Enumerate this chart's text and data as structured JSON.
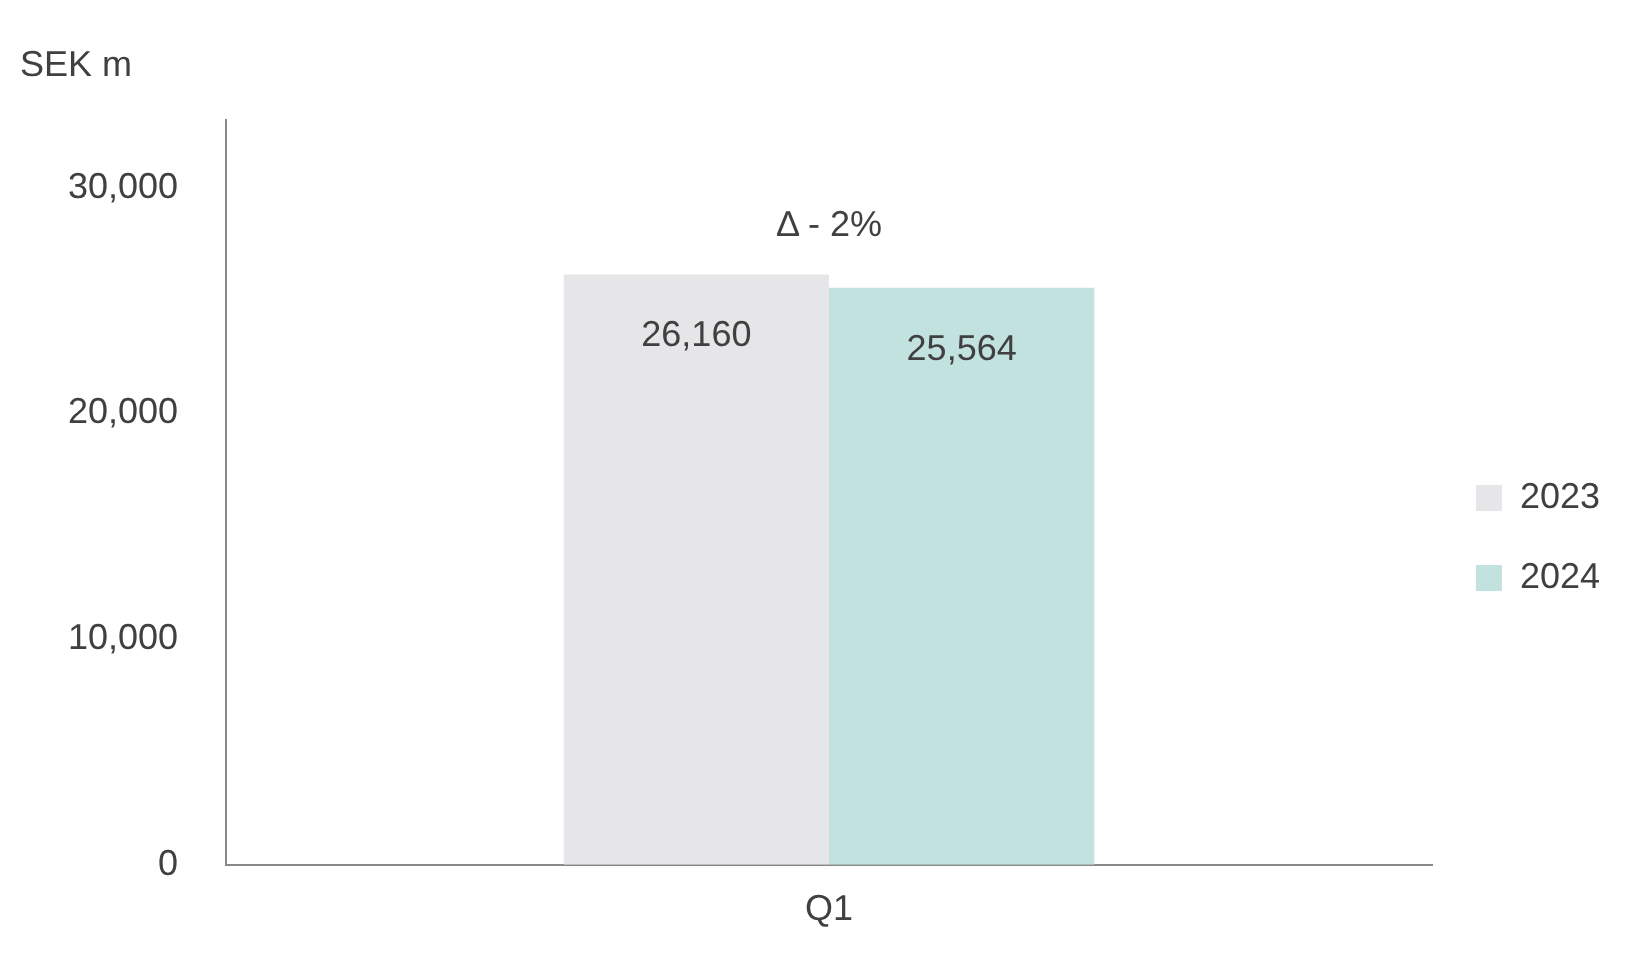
{
  "chart_data": {
    "type": "bar",
    "ylabel": "SEK m",
    "categories": [
      "Q1"
    ],
    "series": [
      {
        "name": "2023",
        "color": "#e6e6e8",
        "values": [
          26160
        ],
        "value_labels": [
          "26,160"
        ]
      },
      {
        "name": "2024",
        "color": "#c2e2df",
        "values": [
          25564
        ],
        "value_labels": [
          "25,564"
        ]
      }
    ],
    "ylim": [
      0,
      33000
    ],
    "yticks": [
      0,
      {
        "value": 10000,
        "label": "10,000"
      },
      {
        "value": 20000,
        "label": "20,000"
      },
      {
        "value": 30000,
        "label": "30,000"
      }
    ],
    "grid": false,
    "legend": "right",
    "annotations": [
      "Δ - 2%"
    ]
  }
}
